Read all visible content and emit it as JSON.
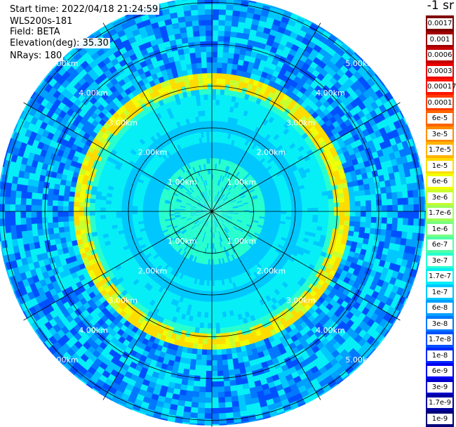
{
  "header": {
    "start_time": "Start time: 2022/04/18 21:24:59",
    "instrument": "WLS200s-181",
    "field": "Field: BETA",
    "elevation": "Elevation(deg): 35.30",
    "nrays": "NRays: 180"
  },
  "colorbar": {
    "unit_title": "-1 sr",
    "ticks": [
      "0.0017",
      "0.001",
      "0.0006",
      "0.0003",
      "0.00017",
      "0.0001",
      "6e-5",
      "3e-5",
      "1.7e-5",
      "1e-5",
      "6e-6",
      "3e-6",
      "1.7e-6",
      "1e-6",
      "6e-7",
      "3e-7",
      "1.7e-7",
      "1e-7",
      "6e-8",
      "3e-8",
      "1.7e-8",
      "1e-8",
      "6e-9",
      "3e-9",
      "1.7e-9",
      "1e-9"
    ],
    "colors": [
      "#7f0000",
      "#a00000",
      "#c40000",
      "#e80000",
      "#ff1400",
      "#ff3c00",
      "#ff6400",
      "#ff8c00",
      "#ffb400",
      "#ffdc00",
      "#f0ff06",
      "#c8ff2f",
      "#9fff57",
      "#78ff80",
      "#50ffa7",
      "#28ffcf",
      "#06eff7",
      "#00c8ff",
      "#00a0ff",
      "#0078ff",
      "#0050ff",
      "#0028ff",
      "#0000f0",
      "#0000c8",
      "#0000a0",
      "#000078"
    ]
  },
  "chart_data": {
    "type": "heatmap",
    "projection": "polar (PPI scan)",
    "field": "BETA",
    "nrays": 180,
    "range_ring_labels": [
      "1.00km",
      "2.00km",
      "3.00km",
      "4.00km",
      "5.00km"
    ],
    "range_rings_km": [
      1,
      2,
      3,
      4,
      5
    ],
    "max_range_km": 5.6,
    "radial_spokes_deg": [
      0,
      30,
      60,
      90,
      120,
      150,
      180,
      210,
      240,
      270,
      300,
      330
    ],
    "radial_profile": [
      {
        "range_km": 0.0,
        "value": "3e-7"
      },
      {
        "range_km": 1.0,
        "value": "3e-7"
      },
      {
        "range_km": 1.3,
        "value": "1e-7"
      },
      {
        "range_km": 1.6,
        "value": "1.7e-7"
      },
      {
        "range_km": 1.85,
        "value": "1e-7"
      },
      {
        "range_km": 2.1,
        "value": "1.7e-7"
      },
      {
        "range_km": 2.75,
        "value": "3e-7"
      },
      {
        "range_km": 3.05,
        "value": "6e-6"
      },
      {
        "range_km": 3.3,
        "value": "1e-7"
      },
      {
        "range_km": 4.0,
        "value": "6e-8"
      },
      {
        "range_km": 5.6,
        "value": "3e-8"
      }
    ],
    "colorscale": "logarithmic, 1e-9 to 0.0017",
    "grid": true
  }
}
